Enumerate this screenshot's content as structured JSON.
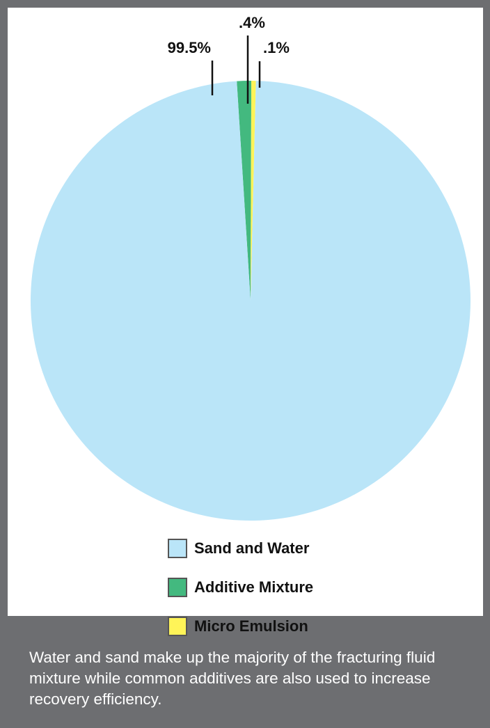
{
  "chart_data": {
    "type": "pie",
    "title": "",
    "slices": [
      {
        "label": "Sand and Water",
        "value": 99.5,
        "value_label": "99.5%",
        "color": "#bae5f8"
      },
      {
        "label": "Additive Mixture",
        "value": 0.4,
        "value_label": ".4%",
        "color": "#43b97f"
      },
      {
        "label": "Micro Emulsion",
        "value": 0.1,
        "value_label": ".1%",
        "color": "#fff458"
      }
    ],
    "legend_position": "bottom-center"
  },
  "caption": "Water and sand make up the majority of the fracturing fluid mixture while common additives are also used to increase recovery efficiency.",
  "colors": {
    "frame": "#6d6e71",
    "panel": "#ffffff",
    "swatch_border": "#555555"
  }
}
